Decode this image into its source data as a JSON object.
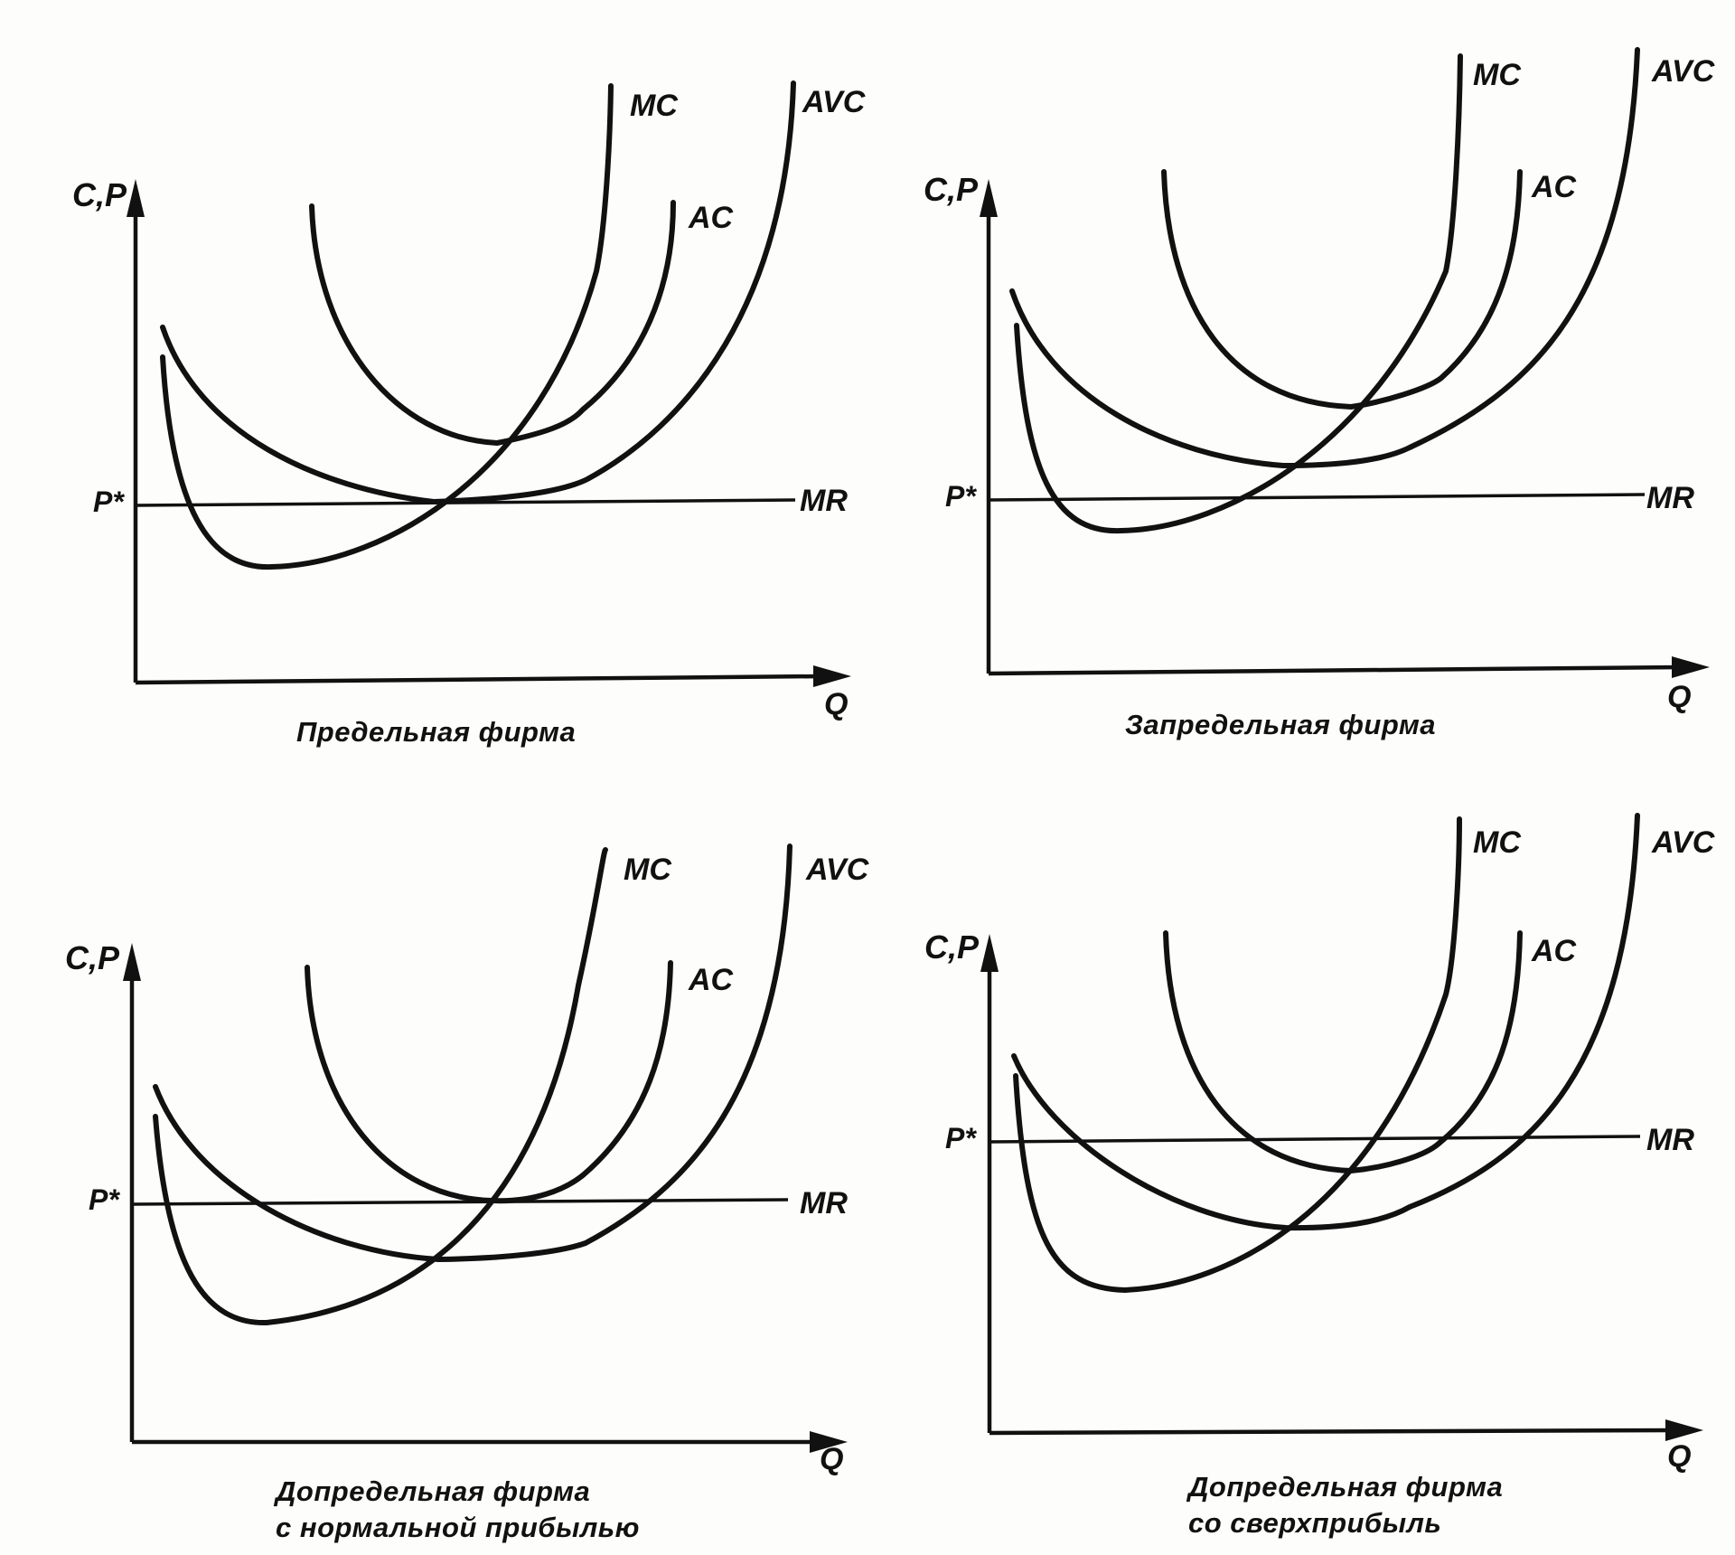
{
  "labels": {
    "y_axis": "C,P",
    "x_axis": "Q",
    "price": "P*",
    "mc": "MC",
    "ac": "AC",
    "avc": "AVC",
    "mr": "MR"
  },
  "panels": [
    {
      "id": "marginal",
      "caption_lines": [
        "Предельная фирма"
      ]
    },
    {
      "id": "submarginal",
      "caption_lines": [
        "Запредельная фирма"
      ]
    },
    {
      "id": "intramarginal-normal",
      "caption_lines": [
        "Допредельная фирма",
        "с нормальной прибылью"
      ]
    },
    {
      "id": "intramarginal-excess",
      "caption_lines": [
        "Допредельная фирма",
        "со сверхприбыль"
      ]
    }
  ]
}
